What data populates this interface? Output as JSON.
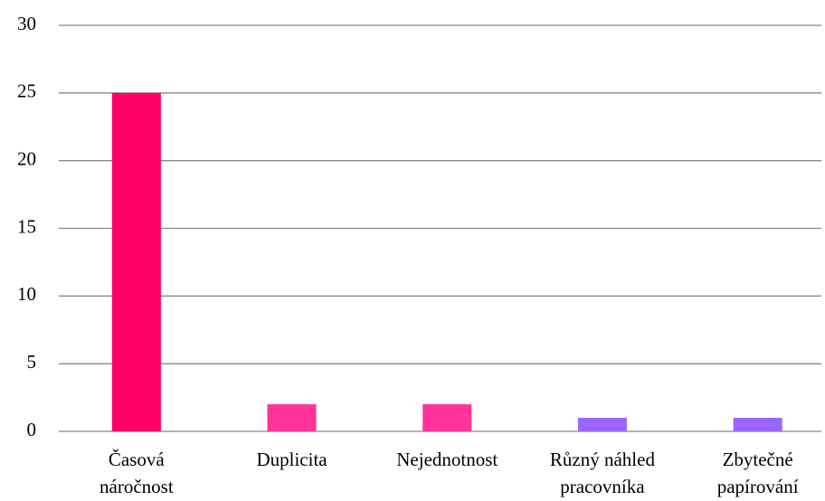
{
  "chart_data": {
    "type": "bar",
    "categories": [
      "Časová\nnáročnost",
      "Duplicita",
      "Nejednotnost",
      "Různý náhled\npracovníka",
      "Zbytečné\npapírování"
    ],
    "values": [
      25,
      2,
      2,
      1,
      1
    ],
    "colors": [
      "#ff0066",
      "#ff3399",
      "#ff3399",
      "#9966ff",
      "#9966ff"
    ],
    "ylim": [
      0,
      30
    ],
    "yticks": [
      0,
      5,
      10,
      15,
      20,
      25,
      30
    ],
    "grid": true
  }
}
